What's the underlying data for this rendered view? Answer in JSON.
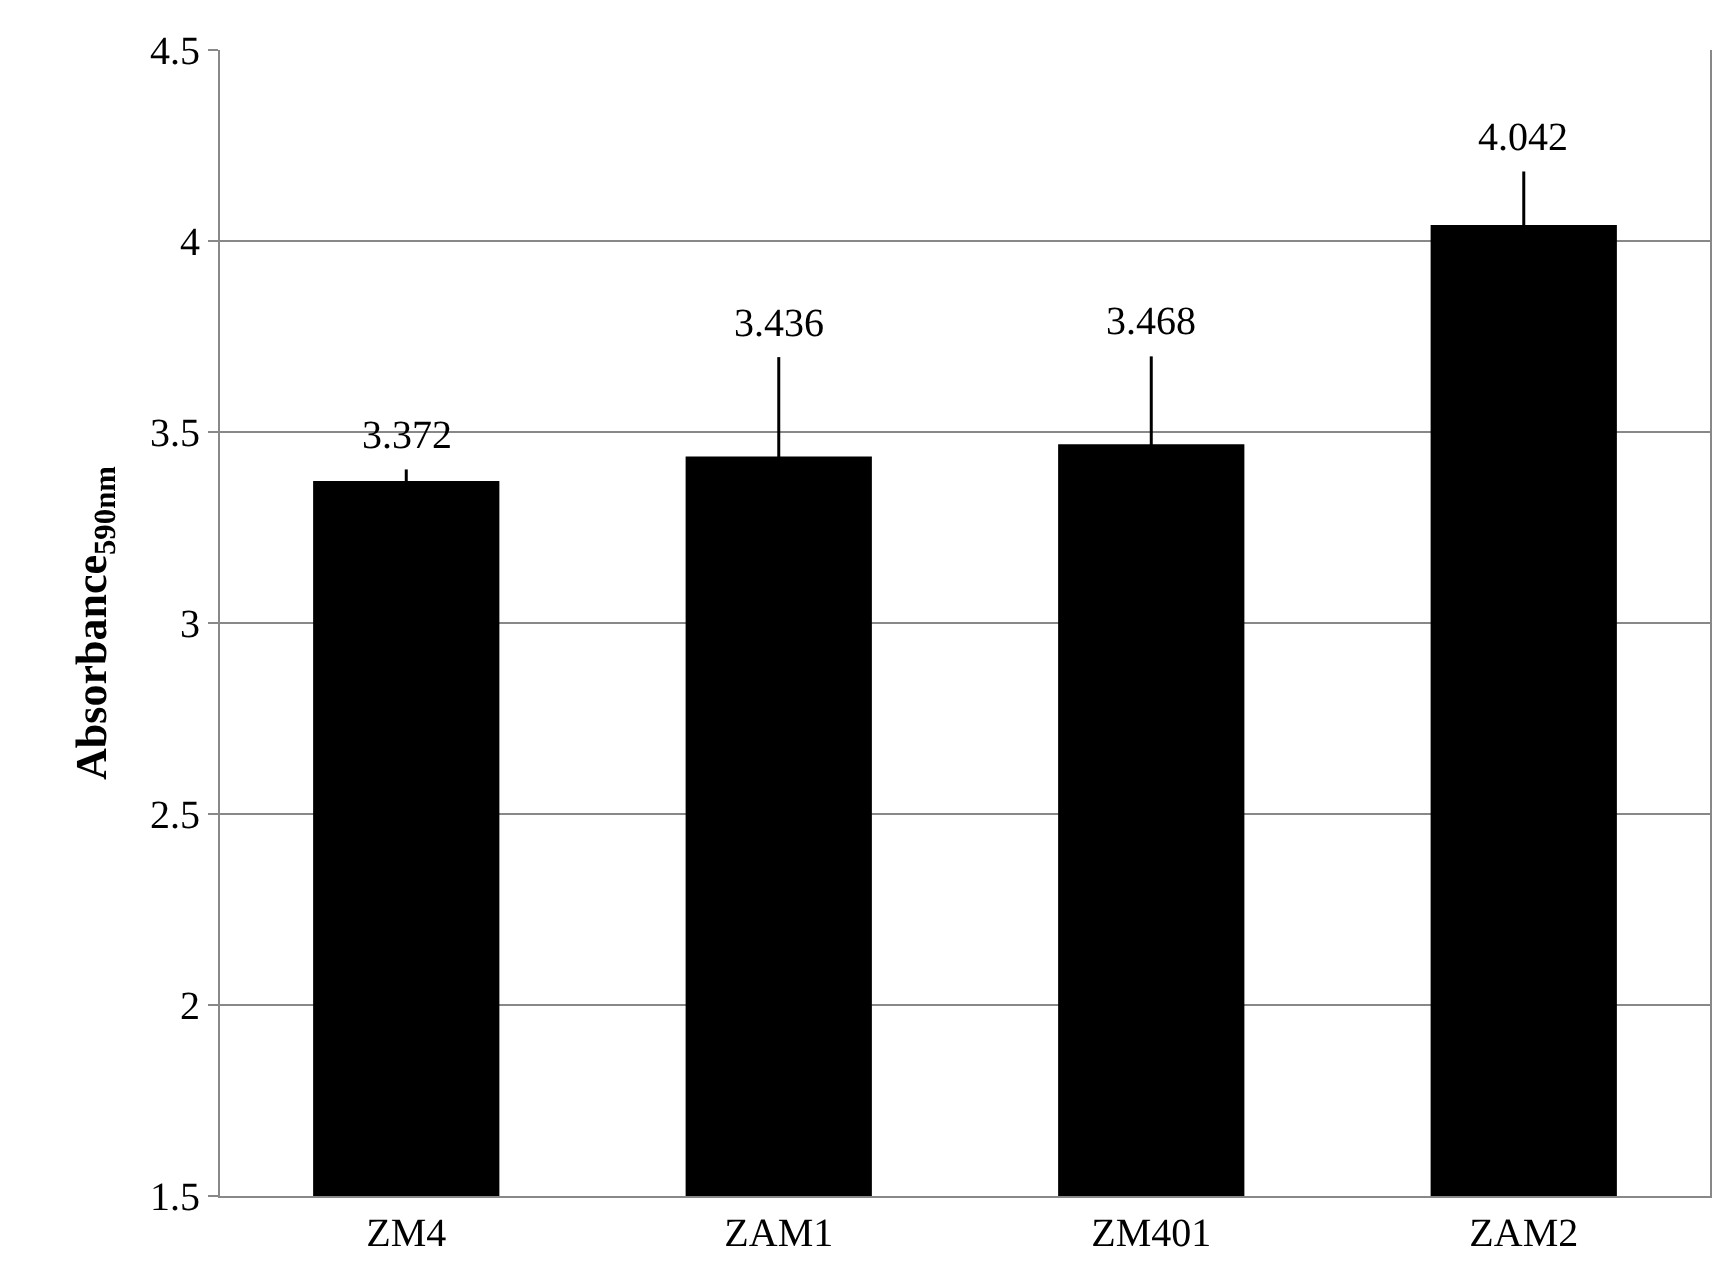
{
  "chart_data": {
    "type": "bar",
    "ylabel": "Absorbance$_{590nm}$",
    "categories": [
      "ZM4",
      "ZAM1",
      "ZM401",
      "ZAM2"
    ],
    "values": [
      3.372,
      3.436,
      3.468,
      4.042
    ],
    "errors": [
      0.03,
      0.26,
      0.23,
      0.14
    ],
    "color": "#000000",
    "ylim": [
      1.5,
      4.5
    ],
    "yticks": [
      1.5,
      2,
      2.5,
      3,
      3.5,
      4,
      4.5
    ],
    "grid": "y",
    "data_labels": true
  }
}
